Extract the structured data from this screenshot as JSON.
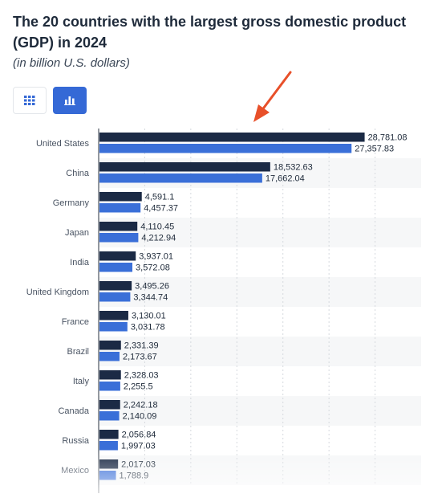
{
  "header": {
    "title": "The 20 countries with the largest gross domestic product (GDP) in 2024",
    "subtitle": "(in billion U.S. dollars)"
  },
  "view_toggle": {
    "table_icon": "grid-icon",
    "chart_icon": "bar-chart-icon",
    "active": "chart"
  },
  "annotation": {
    "icon": "arrow-icon",
    "color": "#e8502a"
  },
  "colors": {
    "series_dark": "#1b2a45",
    "series_blue": "#3a6fd8",
    "band": "#f6f7f8",
    "grid": "#d6d9de"
  },
  "chart_data": {
    "type": "bar",
    "orientation": "horizontal",
    "categories": [
      "United States",
      "China",
      "Germany",
      "Japan",
      "India",
      "United Kingdom",
      "France",
      "Brazil",
      "Italy",
      "Canada",
      "Russia",
      "Mexico"
    ],
    "series": [
      {
        "values": [
          28781.08,
          18532.63,
          4591.1,
          4110.45,
          3937.01,
          3495.26,
          3130.01,
          2331.39,
          2328.03,
          2242.18,
          2056.84,
          2017.03
        ],
        "labels": [
          "28,781.08",
          "18,532.63",
          "4,591.1",
          "4,110.45",
          "3,937.01",
          "3,495.26",
          "3,130.01",
          "2,331.39",
          "2,328.03",
          "2,242.18",
          "2,056.84",
          "2,017.03"
        ]
      },
      {
        "values": [
          27357.83,
          17662.04,
          4457.37,
          4212.94,
          3572.08,
          3344.74,
          3031.78,
          2173.67,
          2255.5,
          2140.09,
          1997.03,
          1788.9
        ],
        "labels": [
          "27,357.83",
          "17,662.04",
          "4,457.37",
          "4,212.94",
          "3,572.08",
          "3,344.74",
          "3,031.78",
          "2,173.67",
          "2,255.5",
          "2,140.09",
          "1,997.03",
          "1,788.9"
        ]
      }
    ],
    "xlim": [
      0,
      35000
    ],
    "grid": true
  }
}
